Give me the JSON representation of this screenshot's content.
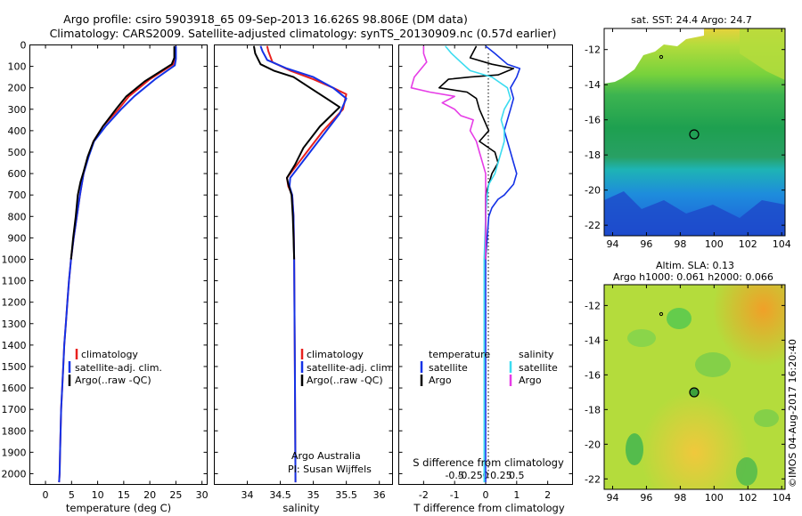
{
  "header": {
    "line1": "Argo profile: csiro 5903918_65 09-Sep-2013 16.626S 98.806E (DM data)",
    "line2": "Climatology: CARS2009. Satellite-adjusted climatology: synTS_20130909.nc (0.57d earlier)"
  },
  "side_caption": "©IMOS 04-Aug-2017 16:20:40",
  "colors": {
    "climatology": "#e8201e",
    "satellite": "#1432e6",
    "argo": "#000000",
    "satellite_salinity": "#3cdcf0",
    "argo_salinity": "#e63ce6"
  },
  "chart_data": [
    {
      "type": "line",
      "id": "temperature",
      "xlabel": "temperature (deg C)",
      "ylabel": "",
      "xlim": [
        -3,
        31
      ],
      "ylim": [
        2050,
        0
      ],
      "xticks": [
        0,
        5,
        10,
        15,
        20,
        25,
        30
      ],
      "yticks": [
        0,
        100,
        200,
        300,
        400,
        500,
        600,
        700,
        800,
        900,
        1000,
        1100,
        1200,
        1300,
        1400,
        1500,
        1600,
        1700,
        1800,
        1900,
        2000
      ],
      "legend": [
        "climatology",
        "satellite-adj. clim.",
        "Argo(..raw -QC)"
      ],
      "series": [
        {
          "name": "climatology",
          "color": "climatology",
          "points": [
            [
              24.9,
              5
            ],
            [
              24.9,
              60
            ],
            [
              24.5,
              90
            ],
            [
              20,
              160
            ],
            [
              16,
              240
            ],
            [
              14,
              300
            ],
            [
              11,
              380
            ],
            [
              9.2,
              450
            ],
            [
              8.2,
              520
            ],
            [
              7.3,
              600
            ],
            [
              6.6,
              700
            ],
            [
              6,
              800
            ],
            [
              5.4,
              900
            ],
            [
              4.9,
              1000
            ],
            [
              4.5,
              1100
            ],
            [
              4.2,
              1200
            ],
            [
              3.9,
              1300
            ],
            [
              3.6,
              1400
            ],
            [
              3.4,
              1500
            ],
            [
              3.2,
              1600
            ],
            [
              3,
              1700
            ],
            [
              2.9,
              1800
            ],
            [
              2.8,
              1900
            ],
            [
              2.7,
              2000
            ],
            [
              2.6,
              2040
            ]
          ]
        },
        {
          "name": "satellite-adj. clim.",
          "color": "satellite",
          "points": [
            [
              25,
              5
            ],
            [
              25,
              65
            ],
            [
              24.8,
              95
            ],
            [
              21,
              160
            ],
            [
              17,
              240
            ],
            [
              14.5,
              300
            ],
            [
              11.5,
              380
            ],
            [
              9.3,
              450
            ],
            [
              8.3,
              520
            ],
            [
              7.3,
              600
            ],
            [
              6.6,
              700
            ],
            [
              6,
              800
            ],
            [
              5.4,
              900
            ],
            [
              4.9,
              1000
            ],
            [
              4.5,
              1100
            ],
            [
              4.2,
              1200
            ],
            [
              3.9,
              1300
            ],
            [
              3.6,
              1400
            ],
            [
              3.4,
              1500
            ],
            [
              3.2,
              1600
            ],
            [
              3,
              1700
            ],
            [
              2.9,
              1800
            ],
            [
              2.8,
              1900
            ],
            [
              2.7,
              2000
            ],
            [
              2.6,
              2040
            ]
          ]
        },
        {
          "name": "Argo(..raw -QC)",
          "color": "argo",
          "points": [
            [
              24.7,
              5
            ],
            [
              24.7,
              60
            ],
            [
              24.2,
              90
            ],
            [
              19,
              170
            ],
            [
              15.5,
              240
            ],
            [
              13.5,
              300
            ],
            [
              11,
              380
            ],
            [
              9.2,
              450
            ],
            [
              8.1,
              520
            ],
            [
              7.2,
              600
            ],
            [
              6.7,
              640
            ],
            [
              6.2,
              700
            ],
            [
              5.8,
              800
            ],
            [
              5.3,
              900
            ],
            [
              4.9,
              1000
            ]
          ]
        }
      ]
    },
    {
      "type": "line",
      "id": "salinity",
      "xlabel": "salinity",
      "xlim": [
        33.5,
        36.2
      ],
      "ylim": [
        2050,
        0
      ],
      "xticks": [
        34,
        34.5,
        35,
        35.5,
        36
      ],
      "legend": [
        "climatology",
        "satellite-adj. clim.",
        "Argo(..raw -QC)"
      ],
      "annotation": [
        "Argo Australia",
        "PI: Susan Wijffels"
      ],
      "series": [
        {
          "name": "climatology",
          "color": "climatology",
          "points": [
            [
              34.3,
              5
            ],
            [
              34.32,
              30
            ],
            [
              34.38,
              80
            ],
            [
              34.65,
              120
            ],
            [
              35,
              160
            ],
            [
              35.3,
              200
            ],
            [
              35.5,
              230
            ],
            [
              35.45,
              300
            ],
            [
              35.15,
              400
            ],
            [
              34.9,
              500
            ],
            [
              34.7,
              580
            ],
            [
              34.6,
              620
            ],
            [
              34.62,
              660
            ],
            [
              34.68,
              700
            ],
            [
              34.7,
              800
            ],
            [
              34.71,
              1000
            ],
            [
              34.72,
              1500
            ],
            [
              34.73,
              2040
            ]
          ]
        },
        {
          "name": "satellite-adj. clim.",
          "color": "satellite",
          "points": [
            [
              34.2,
              5
            ],
            [
              34.23,
              30
            ],
            [
              34.3,
              70
            ],
            [
              34.6,
              110
            ],
            [
              35,
              150
            ],
            [
              35.3,
              200
            ],
            [
              35.5,
              250
            ],
            [
              35.4,
              320
            ],
            [
              35.2,
              400
            ],
            [
              34.95,
              500
            ],
            [
              34.75,
              580
            ],
            [
              34.65,
              620
            ],
            [
              34.64,
              660
            ],
            [
              34.68,
              700
            ],
            [
              34.7,
              800
            ],
            [
              34.71,
              1000
            ],
            [
              34.72,
              1500
            ],
            [
              34.73,
              2040
            ]
          ]
        },
        {
          "name": "Argo(..raw -QC)",
          "color": "argo",
          "points": [
            [
              34.1,
              5
            ],
            [
              34.12,
              40
            ],
            [
              34.2,
              90
            ],
            [
              34.4,
              120
            ],
            [
              34.7,
              150
            ],
            [
              34.95,
              200
            ],
            [
              35.2,
              250
            ],
            [
              35.4,
              290
            ],
            [
              35.3,
              320
            ],
            [
              35.1,
              380
            ],
            [
              34.85,
              480
            ],
            [
              34.72,
              560
            ],
            [
              34.6,
              620
            ],
            [
              34.62,
              650
            ],
            [
              34.67,
              700
            ],
            [
              34.69,
              800
            ],
            [
              34.7,
              900
            ],
            [
              34.71,
              1000
            ]
          ]
        }
      ]
    },
    {
      "type": "line",
      "id": "difference",
      "xlabel": "T difference from climatology",
      "xlabel_top": "S difference from climatology",
      "xlim": [
        -2.8,
        2.8
      ],
      "ylim": [
        2050,
        0
      ],
      "xticks_T": [
        -2,
        -1,
        0,
        1,
        2
      ],
      "xticks_S": [
        -0.5,
        -0.25,
        0,
        0.25,
        0.5
      ],
      "legend_temperature": [
        "temperature",
        "satellite",
        "Argo"
      ],
      "legend_salinity": [
        "salinity",
        "satellite",
        "Argo"
      ],
      "series": [
        {
          "name": "temperature satellite",
          "color": "satellite",
          "points": [
            [
              0,
              5
            ],
            [
              0.3,
              40
            ],
            [
              0.7,
              90
            ],
            [
              1.1,
              110
            ],
            [
              1.0,
              150
            ],
            [
              0.8,
              200
            ],
            [
              0.9,
              250
            ],
            [
              0.8,
              300
            ],
            [
              0.7,
              350
            ],
            [
              0.6,
              400
            ],
            [
              0.7,
              450
            ],
            [
              0.8,
              500
            ],
            [
              0.9,
              550
            ],
            [
              1.0,
              600
            ],
            [
              0.9,
              650
            ],
            [
              0.6,
              700
            ],
            [
              0.4,
              720
            ],
            [
              0.2,
              760
            ],
            [
              0.1,
              800
            ],
            [
              0.05,
              900
            ],
            [
              0,
              1000
            ],
            [
              0,
              1500
            ],
            [
              0,
              2040
            ]
          ]
        },
        {
          "name": "temperature Argo",
          "color": "argo",
          "points": [
            [
              -0.3,
              5
            ],
            [
              -0.5,
              60
            ],
            [
              0.2,
              90
            ],
            [
              0.9,
              110
            ],
            [
              0.4,
              140
            ],
            [
              -0.5,
              150
            ],
            [
              -1.2,
              160
            ],
            [
              -1.5,
              200
            ],
            [
              -0.6,
              220
            ],
            [
              -0.3,
              250
            ],
            [
              -0.2,
              300
            ],
            [
              0.1,
              400
            ],
            [
              -0.2,
              450
            ],
            [
              0.3,
              500
            ],
            [
              0.4,
              550
            ],
            [
              0.2,
              600
            ],
            [
              0.1,
              650
            ],
            [
              0,
              700
            ],
            [
              0,
              1000
            ]
          ]
        },
        {
          "name": "salinity satellite",
          "color": "satellite_salinity",
          "points": [
            [
              -1.3,
              5
            ],
            [
              -1.1,
              40
            ],
            [
              -0.8,
              80
            ],
            [
              -0.5,
              120
            ],
            [
              0.2,
              150
            ],
            [
              0.7,
              200
            ],
            [
              0.8,
              250
            ],
            [
              0.6,
              300
            ],
            [
              0.5,
              350
            ],
            [
              0.6,
              400
            ],
            [
              0.6,
              450
            ],
            [
              0.5,
              500
            ],
            [
              0.4,
              550
            ],
            [
              0.3,
              600
            ],
            [
              0.1,
              650
            ],
            [
              0.05,
              700
            ],
            [
              0,
              800
            ],
            [
              -0.05,
              1000
            ],
            [
              -0.05,
              1500
            ],
            [
              -0.05,
              2040
            ]
          ]
        },
        {
          "name": "salinity Argo",
          "color": "argo_salinity",
          "points": [
            [
              -2.0,
              5
            ],
            [
              -2.0,
              40
            ],
            [
              -1.9,
              80
            ],
            [
              -2.3,
              150
            ],
            [
              -2.4,
              200
            ],
            [
              -1.8,
              220
            ],
            [
              -1.0,
              240
            ],
            [
              -1.4,
              270
            ],
            [
              -1.0,
              300
            ],
            [
              -0.8,
              330
            ],
            [
              -0.4,
              350
            ],
            [
              -0.5,
              400
            ],
            [
              -0.3,
              450
            ],
            [
              -0.2,
              500
            ],
            [
              -0.1,
              550
            ],
            [
              0,
              600
            ],
            [
              0,
              700
            ],
            [
              0,
              1000
            ]
          ]
        }
      ]
    },
    {
      "type": "heatmap",
      "id": "sst_map",
      "title": "sat. SST: 24.4  Argo: 24.7",
      "xlim": [
        93.5,
        104.2
      ],
      "ylim": [
        -22.6,
        -10.8
      ],
      "xticks": [
        94,
        96,
        98,
        100,
        102,
        104
      ],
      "yticks": [
        -12,
        -14,
        -16,
        -18,
        -20,
        -22
      ],
      "argo_position": [
        98.8,
        -16.6
      ],
      "previous_position": [
        96.9,
        -12.2
      ]
    },
    {
      "type": "heatmap",
      "id": "sla_map",
      "title": "Altim. SLA: 0.13",
      "subtitle": "Argo h1000: 0.061  h2000: 0.066",
      "xlim": [
        93.5,
        104.2
      ],
      "ylim": [
        -22.6,
        -10.8
      ],
      "xticks": [
        94,
        96,
        98,
        100,
        102,
        104
      ],
      "yticks": [
        -12,
        -14,
        -16,
        -18,
        -20,
        -22
      ],
      "argo_position": [
        98.8,
        -16.6
      ],
      "previous_position": [
        96.9,
        -12.2
      ]
    }
  ]
}
